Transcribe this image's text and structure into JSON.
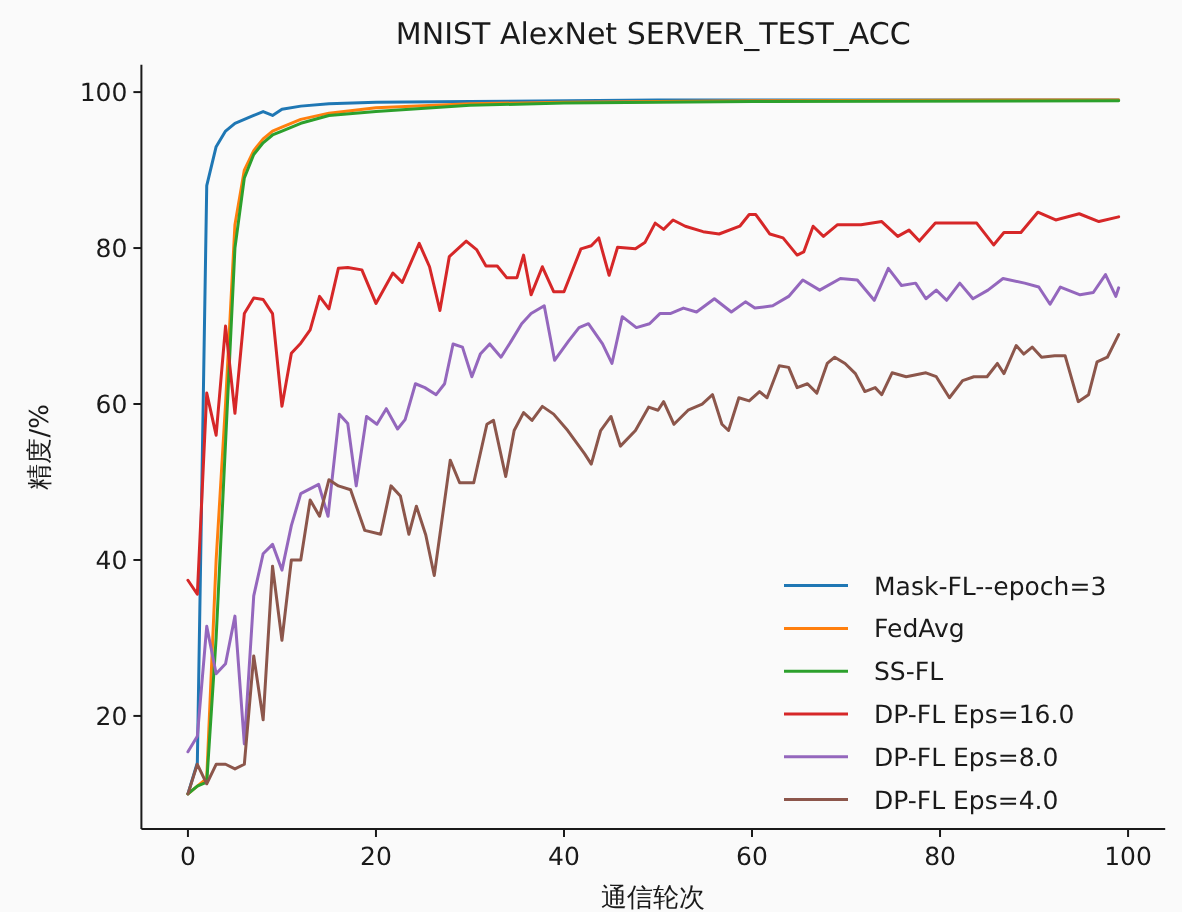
{
  "chart_data": {
    "type": "line",
    "title": "MNIST AlexNet SERVER_TEST_ACC",
    "xlabel": "通信轮次",
    "ylabel": "精度/%",
    "xlim": [
      -4.95,
      103.95
    ],
    "ylim": [
      5.5,
      103.5
    ],
    "xticks": [
      0,
      20,
      40,
      60,
      80,
      100
    ],
    "yticks": [
      20,
      40,
      60,
      80,
      100
    ],
    "grid": false,
    "legend": "bottom right",
    "line_style": "solid",
    "marker": "none",
    "series": [
      {
        "name": "Mask-FL--epoch=3",
        "color": "#1f77b4",
        "x": [
          0,
          1,
          2,
          3,
          4,
          5,
          6,
          7,
          8,
          9,
          10,
          12,
          15,
          20,
          30,
          50,
          99
        ],
        "values": [
          10,
          14,
          88,
          93,
          95,
          96,
          96.5,
          97,
          97.5,
          97,
          97.8,
          98.2,
          98.5,
          98.7,
          98.8,
          99,
          99
        ]
      },
      {
        "name": "FedAvg",
        "color": "#ff7f0e",
        "x": [
          0,
          1,
          2,
          3,
          4,
          5,
          6,
          7,
          8,
          9,
          10,
          12,
          15,
          20,
          30,
          40,
          60,
          99
        ],
        "values": [
          10,
          11,
          12,
          40,
          60,
          83,
          90,
          92.5,
          94,
          95,
          95.5,
          96.5,
          97.3,
          98,
          98.5,
          98.7,
          98.9,
          99
        ]
      },
      {
        "name": "SS-FL",
        "color": "#2ca02c",
        "x": [
          0,
          1,
          2,
          3,
          4,
          5,
          6,
          7,
          8,
          9,
          10,
          12,
          15,
          20,
          30,
          40,
          60,
          99
        ],
        "values": [
          10,
          11,
          11.5,
          30,
          55,
          80,
          89,
          92,
          93.5,
          94.5,
          95,
          96,
          97,
          97.5,
          98.3,
          98.6,
          98.8,
          98.9
        ]
      },
      {
        "name": "DP-FL Eps=16.0",
        "color": "#d62728",
        "x": [
          0,
          1,
          2,
          3,
          4,
          5,
          6,
          7,
          8,
          9,
          10,
          11,
          12,
          13,
          14,
          15,
          16,
          17,
          18.5,
          20,
          21.8,
          22.8,
          24.6,
          25.7,
          26.8,
          27.8,
          29.6,
          30.7,
          31.7,
          32.9,
          33.9,
          35,
          35.7,
          36.5,
          37.7,
          38.9,
          40,
          41.8,
          42.9,
          43.7,
          44.8,
          45.7,
          47.6,
          48.6,
          49.7,
          50.6,
          51.6,
          52.9,
          54.8,
          56.5,
          58.7,
          59.7,
          60.4,
          61.9,
          63.3,
          64.8,
          65.5,
          66.5,
          67.6,
          69.1,
          71.6,
          73.8,
          75.5,
          76.7,
          77.8,
          79.5,
          81.7,
          83.9,
          85.7,
          86.8,
          88.6,
          90.4,
          92.3,
          94.8,
          96.9,
          99
        ],
        "values": [
          37.4,
          35.6,
          61.4,
          56,
          70,
          58.8,
          71.6,
          73.6,
          73.4,
          71.6,
          59.7,
          66.5,
          67.8,
          69.5,
          73.8,
          72.2,
          77.4,
          77.5,
          77.2,
          72.9,
          76.8,
          75.6,
          80.6,
          77.6,
          72,
          78.9,
          80.9,
          79.8,
          77.7,
          77.7,
          76.2,
          76.2,
          79.1,
          74,
          77.6,
          74.4,
          74.4,
          79.9,
          80.3,
          81.3,
          76.5,
          80.1,
          79.9,
          80.7,
          83.2,
          82.4,
          83.6,
          82.8,
          82.1,
          81.8,
          82.8,
          84.3,
          84.3,
          81.8,
          81.3,
          79.1,
          79.5,
          82.8,
          81.5,
          83,
          83,
          83.4,
          81.5,
          82.3,
          80.9,
          83.2,
          83.2,
          83.2,
          80.4,
          82,
          82,
          84.6,
          83.6,
          84.4,
          83.4,
          84
        ]
      },
      {
        "name": "DP-FL Eps=8.0",
        "color": "#9467bd",
        "x": [
          0,
          1,
          2,
          3,
          4,
          5,
          6,
          7,
          8,
          9,
          10,
          11,
          12,
          13.9,
          14.9,
          16.1,
          17,
          17.9,
          19,
          20.1,
          21.1,
          22.3,
          23.1,
          24.2,
          25.2,
          26.4,
          27.3,
          28.2,
          29.2,
          30.2,
          31.1,
          32.1,
          33.3,
          34.4,
          35.5,
          36.5,
          37.9,
          39,
          40.5,
          41.6,
          42.6,
          44.1,
          45.1,
          46.2,
          47.7,
          49.1,
          50.2,
          51.3,
          52.7,
          54.1,
          56,
          57.8,
          59.3,
          60.3,
          62.2,
          63.9,
          65.4,
          67.2,
          69.4,
          71.2,
          73,
          74.5,
          75.9,
          77.4,
          78.5,
          79.6,
          80.7,
          82.1,
          83.5,
          85.1,
          86.7,
          89,
          90.5,
          91.7,
          92.8,
          94.9,
          96.3,
          97.6,
          98.7,
          99
        ],
        "values": [
          15.4,
          17.4,
          31.5,
          25.4,
          26.7,
          32.8,
          16.4,
          35.4,
          40.8,
          42,
          38.7,
          44.4,
          48.5,
          49.7,
          45.6,
          58.7,
          57.5,
          49.5,
          58.4,
          57.4,
          59.4,
          56.8,
          58,
          62.6,
          62.1,
          61.2,
          62.6,
          67.7,
          67.3,
          63.5,
          66.4,
          67.7,
          66,
          68.1,
          70.3,
          71.6,
          72.6,
          65.6,
          68.1,
          69.8,
          70.3,
          67.7,
          65.2,
          71.2,
          69.8,
          70.3,
          71.6,
          71.6,
          72.3,
          71.8,
          73.5,
          71.8,
          73.1,
          72.3,
          72.6,
          73.8,
          75.9,
          74.6,
          76.1,
          75.9,
          73.3,
          77.4,
          75.2,
          75.5,
          73.5,
          74.6,
          73.3,
          75.5,
          73.5,
          74.6,
          76.1,
          75.5,
          75,
          72.8,
          75,
          74,
          74.3,
          76.6,
          73.8,
          74.9
        ]
      },
      {
        "name": "DP-FL Eps=4.0",
        "color": "#8c564b",
        "x": [
          0,
          1,
          2,
          3,
          4,
          5,
          6,
          7,
          8,
          9,
          10,
          11,
          12,
          13,
          14,
          15,
          16,
          17.3,
          18.8,
          20.5,
          21.6,
          22.6,
          23.5,
          24.3,
          25.3,
          26.2,
          27.9,
          28.9,
          30.4,
          31.8,
          32.5,
          33.8,
          34.7,
          35.7,
          36.6,
          37.7,
          38.9,
          40.4,
          42.2,
          42.9,
          43.9,
          45,
          46,
          47.6,
          49,
          50,
          50.6,
          51.7,
          53.2,
          54.7,
          55.8,
          56.8,
          57.5,
          58.6,
          59.7,
          60.8,
          61.6,
          62.9,
          63.9,
          64.8,
          65.9,
          66.9,
          68,
          68.8,
          69.9,
          71,
          72,
          73.1,
          73.8,
          74.9,
          76.4,
          78.5,
          79.6,
          81,
          82.4,
          83.6,
          85,
          86.1,
          86.8,
          88.1,
          88.9,
          89.8,
          90.8,
          92.2,
          93.3,
          94.7,
          95.8,
          96.7,
          97.8,
          99
        ],
        "values": [
          10,
          13.8,
          11.3,
          13.8,
          13.8,
          13.2,
          13.8,
          27.7,
          19.5,
          39.2,
          29.7,
          40,
          40,
          47.7,
          45.6,
          50.3,
          49.5,
          49,
          43.8,
          43.3,
          49.5,
          48.2,
          43.3,
          46.9,
          43.2,
          38,
          52.8,
          49.9,
          49.9,
          57.4,
          57.9,
          50.7,
          56.6,
          58.9,
          57.9,
          59.7,
          58.7,
          56.6,
          53.6,
          52.3,
          56.6,
          58.4,
          54.6,
          56.6,
          59.6,
          59.2,
          60.3,
          57.4,
          59.2,
          60,
          61.2,
          57.4,
          56.6,
          60.8,
          60.4,
          61.6,
          60.8,
          64.9,
          64.7,
          62.1,
          62.6,
          61.4,
          65.2,
          66,
          65.2,
          63.9,
          61.6,
          62.1,
          61.2,
          64,
          63.5,
          64,
          63.5,
          60.8,
          63,
          63.5,
          63.5,
          65.2,
          63.9,
          67.5,
          66.4,
          67.3,
          66,
          66.2,
          66.2,
          60.3,
          61.2,
          65.4,
          66,
          68.9
        ]
      }
    ]
  }
}
